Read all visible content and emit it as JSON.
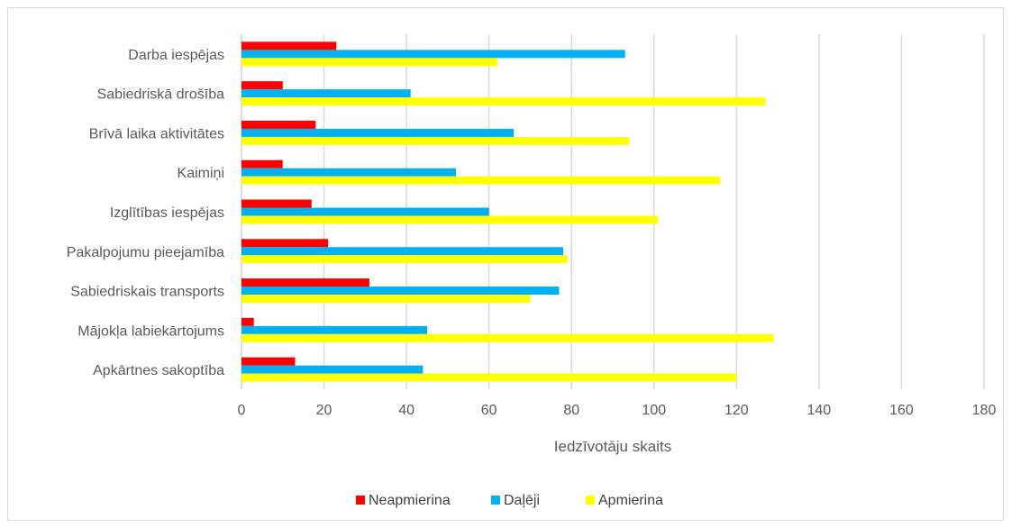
{
  "chart_data": {
    "type": "bar",
    "orientation": "horizontal",
    "title": "",
    "xlabel": "Iedzīvotāju skaits",
    "ylabel": "",
    "xlim": [
      0,
      180
    ],
    "xticks": [
      0,
      20,
      40,
      60,
      80,
      100,
      120,
      140,
      160,
      180
    ],
    "grid": true,
    "legend_position": "bottom",
    "categories": [
      "Darba iespējas",
      "Sabiedriskā drošība",
      "Brīvā laika aktivitātes",
      "Kaimiņi",
      "Izglītības iespējas",
      "Pakalpojumu pieejamība",
      "Sabiedriskais transports",
      "Mājokļa labiekārtojums",
      "Apkārtnes sakoptība"
    ],
    "series": [
      {
        "name": "Neapmierina",
        "color": "#ff0000",
        "values": [
          23,
          10,
          18,
          10,
          17,
          21,
          31,
          3,
          13
        ]
      },
      {
        "name": "Daļēji",
        "color": "#00b0f0",
        "values": [
          93,
          41,
          66,
          52,
          60,
          78,
          77,
          45,
          44
        ]
      },
      {
        "name": "Apmierina",
        "color": "#ffff00",
        "values": [
          62,
          127,
          94,
          116,
          101,
          79,
          70,
          129,
          120
        ]
      }
    ]
  }
}
